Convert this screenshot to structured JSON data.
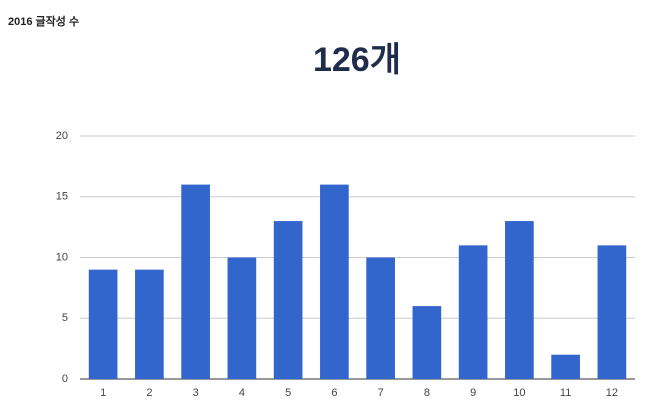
{
  "chart_data": {
    "type": "bar",
    "title": "2016 글작성 수",
    "subtitle": "126개",
    "categories": [
      "1",
      "2",
      "3",
      "4",
      "5",
      "6",
      "7",
      "8",
      "9",
      "10",
      "11",
      "12"
    ],
    "values": [
      9,
      9,
      16,
      10,
      13,
      16,
      10,
      6,
      11,
      13,
      2,
      11
    ],
    "color": "#3366cc",
    "ylim": [
      0,
      20
    ],
    "yticks": [
      0,
      5,
      10,
      15,
      20
    ],
    "grid": true
  }
}
